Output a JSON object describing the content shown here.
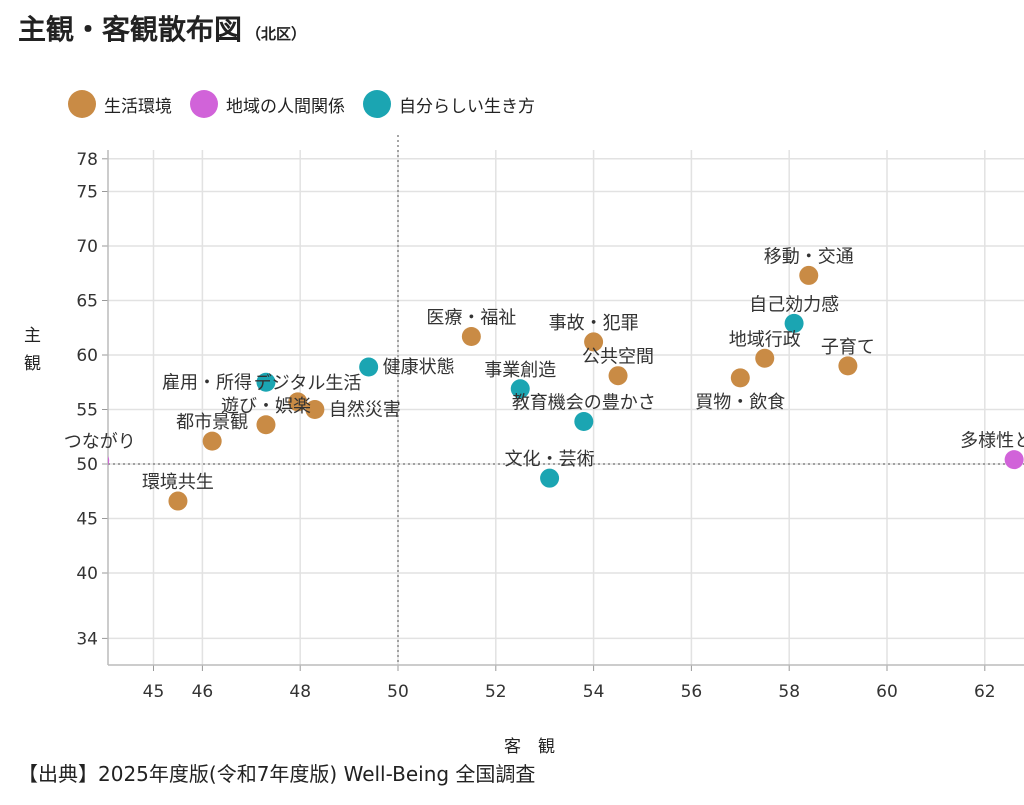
{
  "chart_data": {
    "type": "scatter",
    "title": "主観・客観散布図",
    "subtitle": "（北区）",
    "xlabel": "客　観",
    "ylabel": "主観",
    "xlim": [
      44.1,
      62.8
    ],
    "ylim": [
      31.5,
      78.8
    ],
    "xticks": [
      45,
      46,
      48,
      50,
      52,
      54,
      56,
      58,
      60,
      62
    ],
    "yticks": [
      34,
      40,
      45,
      50,
      55,
      60,
      65,
      70,
      75,
      78
    ],
    "grid": true,
    "reference_lines": {
      "x": 50,
      "y": 50
    },
    "legend_position": "top-left",
    "series": [
      {
        "name": "生活環境",
        "color": "#c98b45",
        "points": [
          {
            "label": "移動・交通",
            "x": 58.4,
            "y": 67.3
          },
          {
            "label": "地域行政",
            "x": 57.5,
            "y": 59.7
          },
          {
            "label": "買物・飲食",
            "x": 57.0,
            "y": 57.9
          },
          {
            "label": "子育て",
            "x": 59.2,
            "y": 59.0
          },
          {
            "label": "公共空間",
            "x": 54.5,
            "y": 58.1
          },
          {
            "label": "事故・犯罪",
            "x": 54.0,
            "y": 61.2
          },
          {
            "label": "医療・福祉",
            "x": 51.5,
            "y": 61.7
          },
          {
            "label": "デジタル生活",
            "x": 47.95,
            "y": 55.7
          },
          {
            "label": "自然災害",
            "x": 48.3,
            "y": 55.0
          },
          {
            "label": "遊び・娯楽",
            "x": 47.3,
            "y": 53.6
          },
          {
            "label": "都市景観",
            "x": 46.2,
            "y": 52.1
          },
          {
            "label": "環境共生",
            "x": 45.5,
            "y": 46.6
          }
        ]
      },
      {
        "name": "地域の人間関係",
        "color": "#d163d9",
        "points": [
          {
            "label": "多様性と寛容",
            "x": 62.6,
            "y": 50.4
          },
          {
            "label": "つながり",
            "x": 43.9,
            "y": 50.3
          }
        ]
      },
      {
        "name": "自分らしい生き方",
        "color": "#1ba5b2",
        "points": [
          {
            "label": "自己効力感",
            "x": 58.1,
            "y": 62.9
          },
          {
            "label": "事業創造",
            "x": 52.5,
            "y": 56.9
          },
          {
            "label": "教育機会の豊かさ",
            "x": 53.8,
            "y": 53.9
          },
          {
            "label": "文化・芸術",
            "x": 53.1,
            "y": 48.7
          },
          {
            "label": "健康状態",
            "x": 49.4,
            "y": 58.9
          },
          {
            "label": "雇用・所得",
            "x": 47.3,
            "y": 57.5
          }
        ]
      }
    ]
  },
  "source": "【出典】2025年度版(令和7年度版) Well-Being 全国調査"
}
